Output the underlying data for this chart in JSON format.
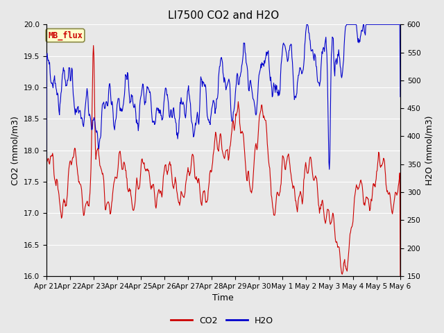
{
  "title": "LI7500 CO2 and H2O",
  "xlabel": "Time",
  "ylabel_left": "CO2 (mmol/m3)",
  "ylabel_right": "H2O (mmol/m3)",
  "ylim_left": [
    16.0,
    20.0
  ],
  "ylim_right": [
    150,
    600
  ],
  "yticks_left": [
    16.0,
    16.5,
    17.0,
    17.5,
    18.0,
    18.5,
    19.0,
    19.5,
    20.0
  ],
  "yticks_right": [
    150,
    200,
    250,
    300,
    350,
    400,
    450,
    500,
    550,
    600
  ],
  "xtick_labels": [
    "Apr 21",
    "Apr 22",
    "Apr 23",
    "Apr 24",
    "Apr 25",
    "Apr 26",
    "Apr 27",
    "Apr 28",
    "Apr 29",
    "Apr 30",
    "May 1",
    "May 2",
    "May 3",
    "May 4",
    "May 5",
    "May 6"
  ],
  "co2_color": "#cc0000",
  "h2o_color": "#0000cc",
  "plot_bg_color": "#e8e8e8",
  "fig_bg_color": "#e8e8e8",
  "annotation_text": "MB_flux",
  "annotation_bg": "#ffffcc",
  "annotation_border": "#cc0000",
  "legend_co2": "CO2",
  "legend_h2o": "H2O",
  "title_fontsize": 11,
  "axis_label_fontsize": 9,
  "tick_fontsize": 7.5,
  "line_width": 0.8
}
